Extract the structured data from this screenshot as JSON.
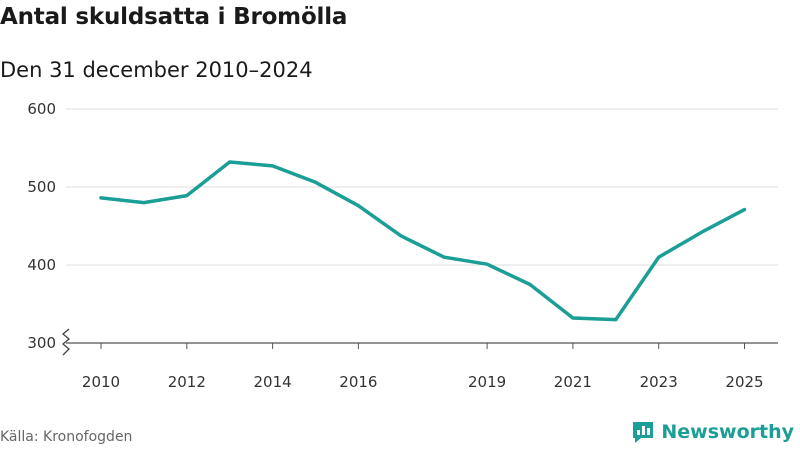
{
  "title": "Antal skuldsatta i Bromölla",
  "subtitle": "Den 31 december 2010–2024",
  "source": "Källa: Kronofogden",
  "brand": {
    "name": "Newsworthy",
    "icon": "newsworthy-logo-icon",
    "color": "#1a9e95"
  },
  "chart_data": {
    "type": "line",
    "title": "Antal skuldsatta i Bromölla",
    "subtitle": "Den 31 december 2010–2024",
    "xlabel": "",
    "ylabel": "",
    "x": [
      2010,
      2011,
      2012,
      2013,
      2014,
      2015,
      2016,
      2017,
      2018,
      2019,
      2020,
      2021,
      2022,
      2023,
      2024,
      2025
    ],
    "series": [
      {
        "name": "Antal skuldsatta",
        "color": "#1a9e95",
        "values": [
          486,
          480,
          489,
          532,
          527,
          506,
          476,
          437,
          410,
          401,
          375,
          332,
          330,
          410,
          442,
          471
        ]
      }
    ],
    "ylim": [
      300,
      600
    ],
    "yticks": [
      300,
      400,
      500,
      600
    ],
    "xticks": [
      "2010",
      "2012",
      "2014",
      "2016",
      "2019",
      "2021",
      "2023",
      "2025"
    ],
    "axis_break": true,
    "grid": true
  }
}
